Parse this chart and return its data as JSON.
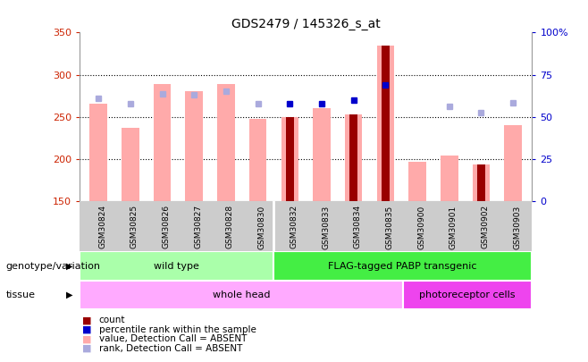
{
  "title": "GDS2479 / 145326_s_at",
  "samples": [
    "GSM30824",
    "GSM30825",
    "GSM30826",
    "GSM30827",
    "GSM30828",
    "GSM30830",
    "GSM30832",
    "GSM30833",
    "GSM30834",
    "GSM30835",
    "GSM30900",
    "GSM30901",
    "GSM30902",
    "GSM30903"
  ],
  "value_bars": [
    265,
    237,
    289,
    280,
    289,
    247,
    250,
    260,
    253,
    335,
    197,
    204,
    193,
    240
  ],
  "count_bars": [
    null,
    null,
    null,
    null,
    null,
    null,
    250,
    null,
    253,
    335,
    null,
    null,
    193,
    null
  ],
  "rank_dots_y": [
    272,
    265,
    277,
    276,
    280,
    266,
    265,
    266,
    270,
    288,
    null,
    262,
    255,
    267
  ],
  "rank_dots_blue": [
    false,
    false,
    false,
    false,
    false,
    false,
    true,
    true,
    true,
    true,
    false,
    false,
    false,
    false
  ],
  "ylim_left": [
    150,
    350
  ],
  "ylim_right": [
    0,
    100
  ],
  "yticks_left": [
    150,
    200,
    250,
    300,
    350
  ],
  "yticks_right": [
    0,
    25,
    50,
    75,
    100
  ],
  "ytick_labels_right": [
    "0",
    "25",
    "50",
    "75",
    "100%"
  ],
  "bar_color_value": "#ffaaaa",
  "bar_color_count": "#990000",
  "dot_color_absent": "#aaaadd",
  "dot_color_present": "#0000cc",
  "left_axis_color": "#cc2200",
  "right_axis_color": "#0000cc",
  "group_separator": 5,
  "genotype_groups": [
    {
      "label": "wild type",
      "start": 0,
      "end": 5,
      "color": "#aaffaa"
    },
    {
      "label": "FLAG-tagged PABP transgenic",
      "start": 6,
      "end": 13,
      "color": "#44ee44"
    }
  ],
  "tissue_groups": [
    {
      "label": "whole head",
      "start": 0,
      "end": 9,
      "color": "#ffaaff"
    },
    {
      "label": "photoreceptor cells",
      "start": 10,
      "end": 13,
      "color": "#ee44ee"
    }
  ],
  "legend_items": [
    {
      "label": "count",
      "color": "#990000"
    },
    {
      "label": "percentile rank within the sample",
      "color": "#0000cc"
    },
    {
      "label": "value, Detection Call = ABSENT",
      "color": "#ffaaaa"
    },
    {
      "label": "rank, Detection Call = ABSENT",
      "color": "#aaaadd"
    }
  ],
  "genotype_label": "genotype/variation",
  "tissue_label": "tissue"
}
